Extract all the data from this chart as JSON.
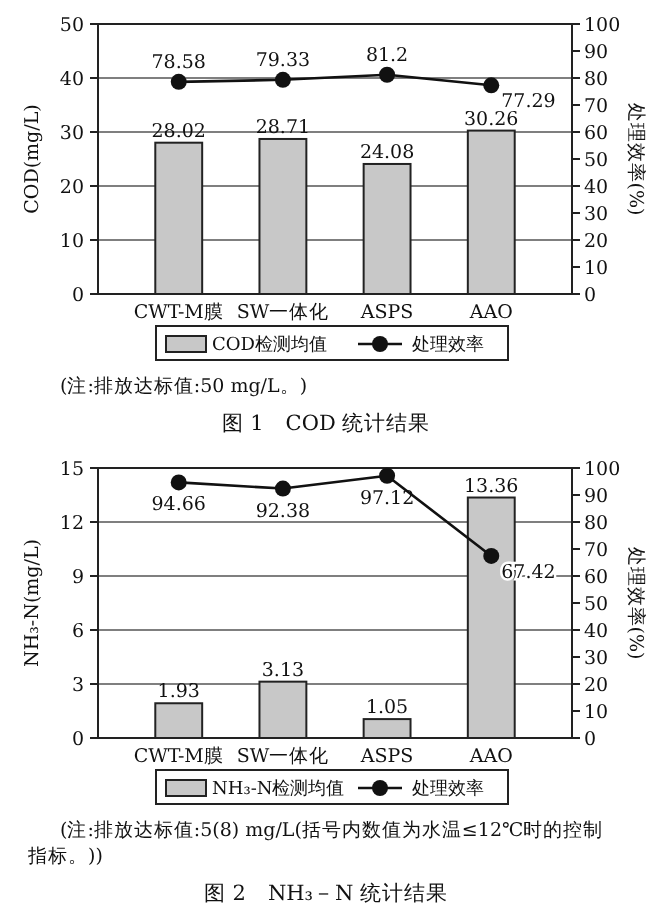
{
  "chart_data": [
    {
      "type": "bar",
      "title": "图 1　COD 统计结果",
      "categories": [
        "CWT-M膜",
        "SW一体化",
        "ASPS",
        "AAO"
      ],
      "ylabel": "COD(mg/L)",
      "y2label": "处理效率(%)",
      "ylim": [
        0,
        50
      ],
      "yticks": [
        0,
        10,
        20,
        30,
        40,
        50
      ],
      "y2lim": [
        0,
        100
      ],
      "y2ticks": [
        0,
        10,
        20,
        30,
        40,
        50,
        60,
        70,
        80,
        90,
        100
      ],
      "grid": "y",
      "legend": "bottom",
      "data_labels": true,
      "marker": "circle",
      "annotations": [
        "(注:排放达标值:50 mg/L。)"
      ],
      "series": [
        {
          "name": "COD检测均值",
          "color": "#c8c8c8",
          "values": [
            28.02,
            28.71,
            24.08,
            30.26
          ]
        },
        {
          "name": "处理效率",
          "type": "line",
          "axis": "y2",
          "color": "#111111",
          "values": [
            78.58,
            79.33,
            81.2,
            77.29
          ]
        }
      ]
    },
    {
      "type": "bar",
      "title": "图 2　NH₃－N 统计结果",
      "categories": [
        "CWT-M膜",
        "SW一体化",
        "ASPS",
        "AAO"
      ],
      "ylabel": "NH₃-N(mg/L)",
      "y2label": "处理效率(%)",
      "ylim": [
        0,
        15
      ],
      "yticks": [
        0,
        3,
        6,
        9,
        12,
        15
      ],
      "y2lim": [
        0,
        100
      ],
      "y2ticks": [
        0,
        10,
        20,
        30,
        40,
        50,
        60,
        70,
        80,
        90,
        100
      ],
      "grid": "y",
      "legend": "bottom",
      "data_labels": true,
      "marker": "circle",
      "annotations": [
        "(注:排放达标值:5(8) mg/L(括号内数值为水温≤12℃时的控制指标。))"
      ],
      "series": [
        {
          "name": "NH₃-N检测均值",
          "color": "#c8c8c8",
          "values": [
            1.93,
            3.13,
            1.05,
            13.36
          ]
        },
        {
          "name": "处理效率",
          "type": "line",
          "axis": "y2",
          "color": "#111111",
          "values": [
            94.66,
            92.38,
            97.12,
            67.42
          ]
        }
      ]
    }
  ]
}
